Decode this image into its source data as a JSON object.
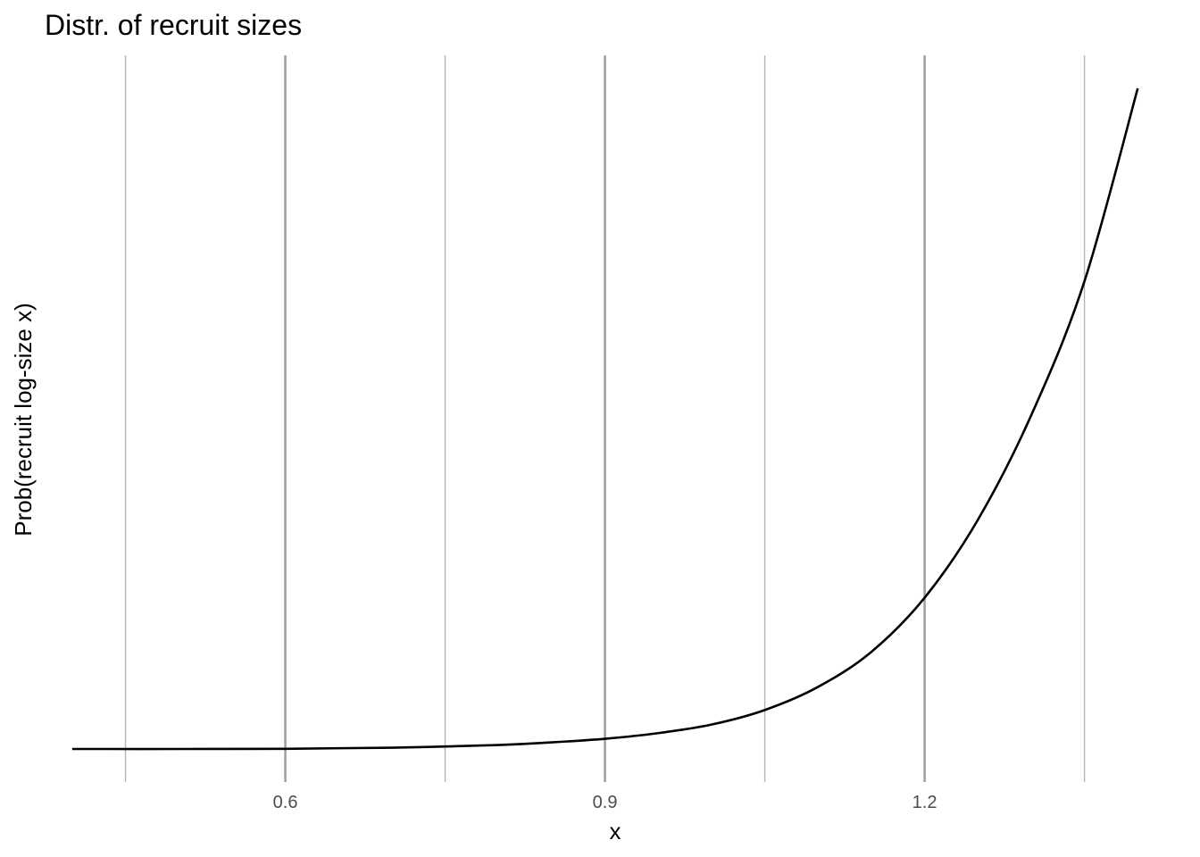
{
  "chart_data": {
    "type": "line",
    "title": "Distr. of recruit sizes",
    "xlabel": "x",
    "ylabel": "Prob(recruit log-size x)",
    "xlim": [
      0.38,
      1.44
    ],
    "x_ticks": [
      0.6,
      0.9,
      1.2
    ],
    "x_tick_labels": [
      "0.6",
      "0.9",
      "1.2"
    ],
    "x_minor_ticks": [
      0.45,
      0.75,
      1.05,
      1.35
    ],
    "y_tick_labels": [],
    "grid": "vertical",
    "legend": "none",
    "series": [
      {
        "color": "#000000",
        "x": [
          0.4,
          0.5,
          0.6,
          0.7,
          0.8,
          0.85,
          0.9,
          0.95,
          1.0,
          1.05,
          1.1,
          1.15,
          1.2,
          1.25,
          1.3,
          1.35,
          1.4
        ],
        "y": [
          0.0,
          0.0,
          0.0003,
          0.002,
          0.006,
          0.01,
          0.0155,
          0.024,
          0.037,
          0.059,
          0.094,
          0.147,
          0.229,
          0.347,
          0.505,
          0.708,
          1.0
        ]
      }
    ]
  }
}
